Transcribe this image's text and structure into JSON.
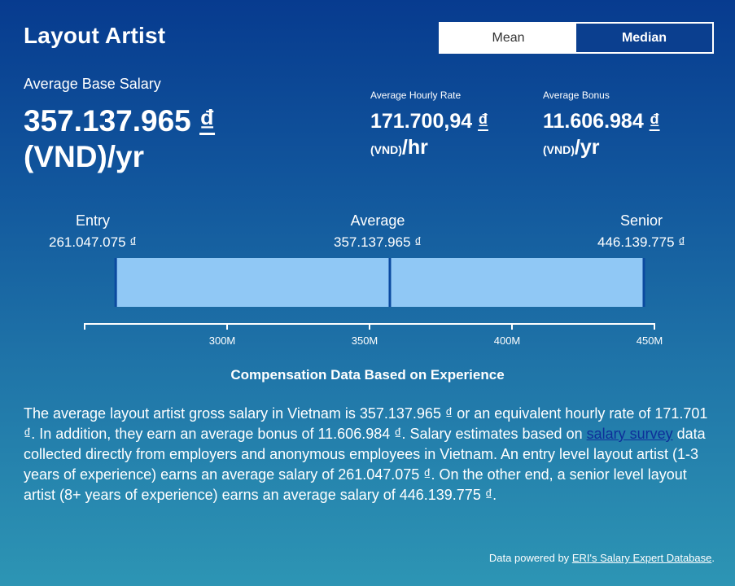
{
  "header": {
    "title": "Layout Artist",
    "toggle": {
      "mean_label": "Mean",
      "median_label": "Median",
      "selected": "Median"
    }
  },
  "base_salary": {
    "label": "Average Base Salary",
    "amount": "357.137.965",
    "symbol": "₫",
    "unit": "(VND)/yr"
  },
  "hourly": {
    "label": "Average Hourly Rate",
    "amount": "171.700,94",
    "symbol": "₫",
    "unit_small": "(VND)",
    "unit_period": "/hr"
  },
  "bonus": {
    "label": "Average Bonus",
    "amount": "11.606.984",
    "symbol": "₫",
    "unit_small": "(VND)",
    "unit_period": "/yr"
  },
  "levels": {
    "entry": {
      "name": "Entry",
      "amount": "261.047.075 ₫"
    },
    "average": {
      "name": "Average",
      "amount": "357.137.965 ₫"
    },
    "senior": {
      "name": "Senior",
      "amount": "446.139.775 ₫"
    }
  },
  "chart_data": {
    "type": "bar",
    "orientation": "horizontal-range",
    "x_unit": "M",
    "xlim": [
      250,
      450
    ],
    "ticks": [
      {
        "value": 300,
        "label": "300M"
      },
      {
        "value": 350,
        "label": "350M"
      },
      {
        "value": 400,
        "label": "400M"
      },
      {
        "value": 450,
        "label": "450M"
      }
    ],
    "entry": 261.047075,
    "average": 357.137965,
    "senior": 446.139775,
    "bar_color": "#90c8f5",
    "edge_color": "#0b4aa0",
    "caption": "Compensation Data Based on Experience"
  },
  "description": {
    "part1": "The average layout artist gross salary in Vietnam is 357.137.965 ₫ or an equivalent hourly rate of 171.701 ₫. In addition, they earn an average bonus of 11.606.984 ₫. Salary estimates based on ",
    "link": "salary survey",
    "part2": " data collected directly from employers and anonymous employees in Vietnam. An entry level layout artist (1-3 years of experience) earns an average salary of 261.047.075 ₫. On the other end, a senior level layout artist (8+ years of experience) earns an average salary of 446.139.775 ₫."
  },
  "footer": {
    "prefix": "Data powered by ",
    "link": "ERI's Salary Expert Database",
    "suffix": "."
  }
}
